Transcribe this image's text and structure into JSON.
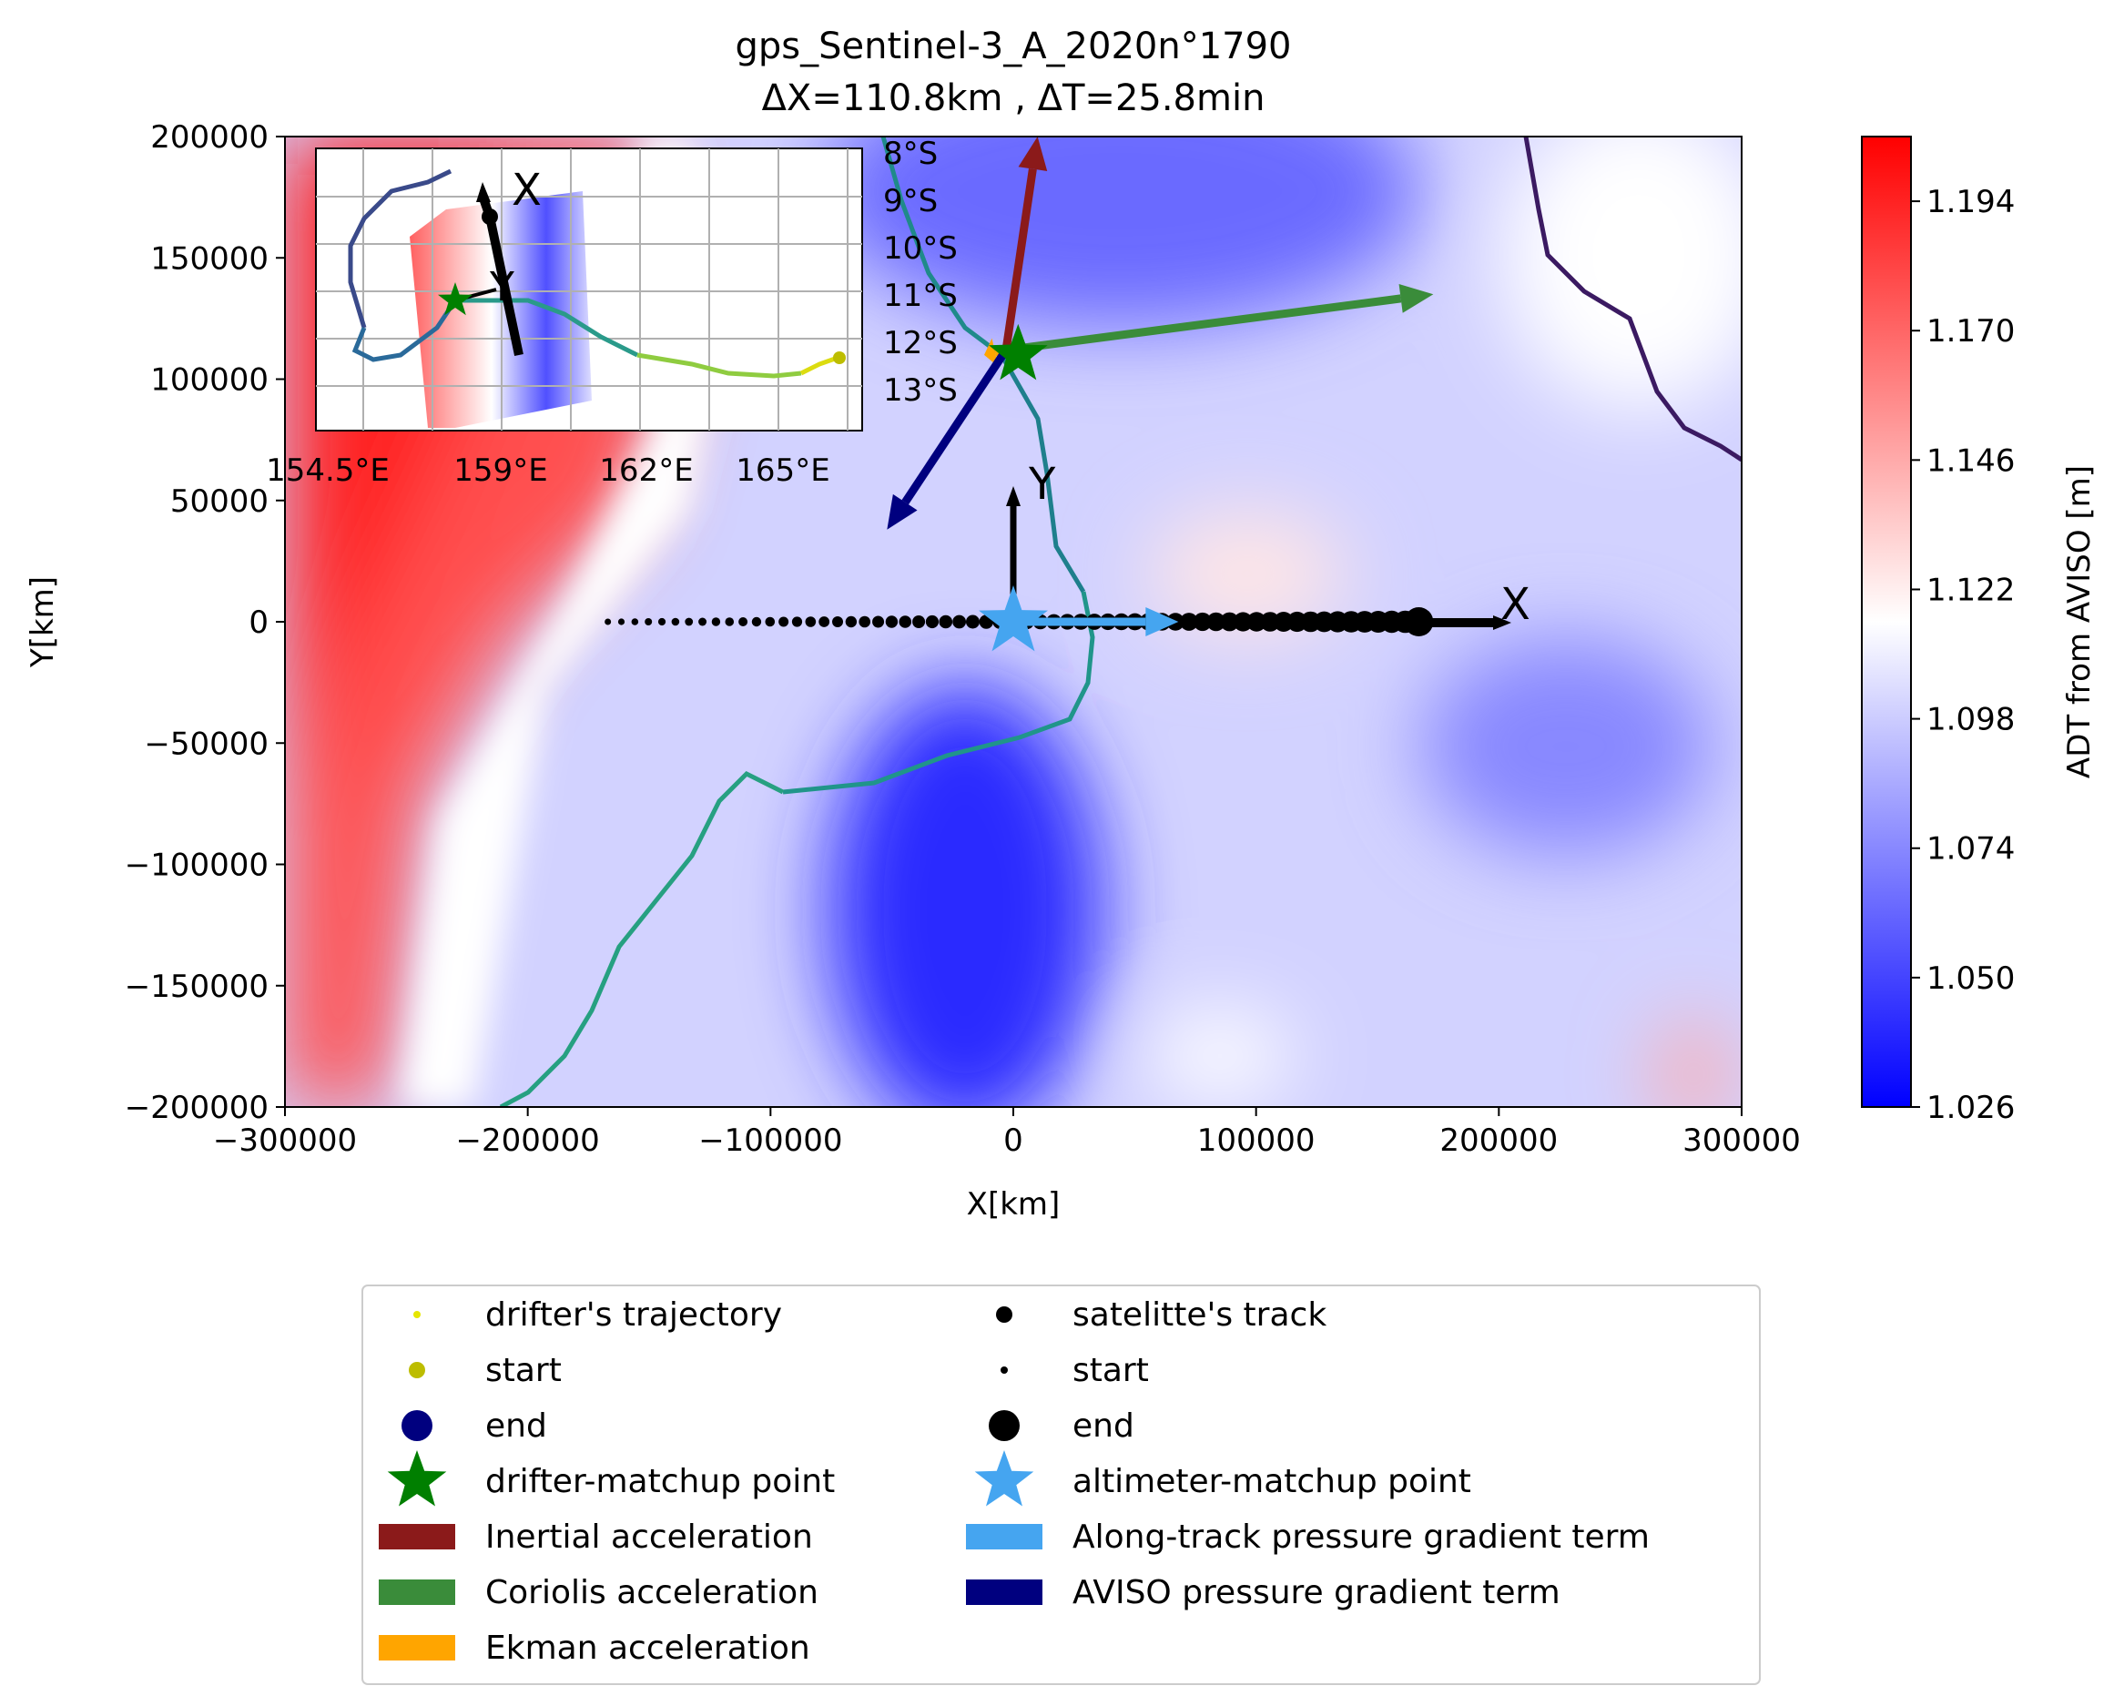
{
  "chart_data": {
    "type": "contour",
    "title_line1": "gps_Sentinel-3_A_2020n°1790",
    "title_line2": "ΔX=110.8km , ΔT=25.8min",
    "xlabel": "X[km]",
    "ylabel": "Y[km]",
    "xlim": [
      -300000,
      300000
    ],
    "ylim": [
      -200000,
      200000
    ],
    "x_ticks": [
      -300000,
      -200000,
      -100000,
      0,
      100000,
      200000,
      300000
    ],
    "x_tick_labels": [
      "−300000",
      "−200000",
      "−100000",
      "0",
      "100000",
      "200000",
      "300000"
    ],
    "y_ticks": [
      200000,
      150000,
      100000,
      50000,
      0,
      -50000,
      -100000,
      -150000,
      -200000
    ],
    "y_tick_labels": [
      "200000",
      "150000",
      "100000",
      "50000",
      "0",
      "−50000",
      "−100000",
      "−150000",
      "−200000"
    ],
    "colorbar": {
      "label": "ADT from AVISO [m]",
      "min": 1.026,
      "max": 1.206,
      "ticks": [
        1.026,
        1.05,
        1.074,
        1.098,
        1.122,
        1.146,
        1.17,
        1.194
      ],
      "tick_labels": [
        "1.026",
        "1.050",
        "1.074",
        "1.098",
        "1.122",
        "1.146",
        "1.170",
        "1.194"
      ],
      "colormap": [
        "#0000ff",
        "#ffffff",
        "#ff0000"
      ]
    },
    "satellite_track": {
      "x_start": -167000,
      "x_end": 167000,
      "y": 0
    },
    "drifter_matchup": {
      "x": 2000,
      "y": 110000
    },
    "altimeter_matchup": {
      "x": 0,
      "y": 0
    },
    "axis_arrows": {
      "x_label": "X",
      "y_label": "Y"
    },
    "vectors": [
      {
        "name": "Inertial acceleration",
        "color": "#8b1a1a",
        "x0": -3000,
        "y0": 112000,
        "x1": 10000,
        "y1": 200000
      },
      {
        "name": "Coriolis acceleration",
        "color": "#3a8c3a",
        "x0": -3000,
        "y0": 112000,
        "x1": 173000,
        "y1": 135000
      },
      {
        "name": "Ekman acceleration",
        "color": "#ffa500",
        "x0": -3000,
        "y0": 112000,
        "x1": -12000,
        "y1": 110000
      },
      {
        "name": "AVISO pressure gradient term",
        "color": "#00007f",
        "x0": -3000,
        "y0": 112000,
        "x1": -52000,
        "y1": 38000
      },
      {
        "name": "Along-track pressure gradient term",
        "color": "#45a5f0",
        "x0": 0,
        "y0": 0,
        "x1": 68000,
        "y1": 0
      }
    ],
    "inset": {
      "lat_labels": [
        "8°S",
        "9°S",
        "10°S",
        "11°S",
        "12°S",
        "13°S"
      ],
      "lon_labels": [
        "154.5°E",
        "159°E",
        "162°E",
        "165°E"
      ],
      "axis_labels": {
        "x": "X",
        "y": "Y"
      }
    },
    "legend": {
      "placement": "below",
      "entries": [
        {
          "label": "drifter's trajectory",
          "marker": "small-dot",
          "color": "#e6e600"
        },
        {
          "label": "start",
          "marker": "dot",
          "color": "#bdbd00"
        },
        {
          "label": "end",
          "marker": "big-dot",
          "color": "#00007f"
        },
        {
          "label": "drifter-matchup point",
          "marker": "star",
          "color": "#007f00"
        },
        {
          "label": "Inertial acceleration",
          "marker": "patch",
          "color": "#8b1a1a"
        },
        {
          "label": "Coriolis acceleration",
          "marker": "patch",
          "color": "#3a8c3a"
        },
        {
          "label": "Ekman acceleration",
          "marker": "patch",
          "color": "#ffa500"
        },
        {
          "label": "satelitte's track",
          "marker": "dot",
          "color": "#000000"
        },
        {
          "label": "start",
          "marker": "small-dot",
          "color": "#000000"
        },
        {
          "label": "end",
          "marker": "big-dot",
          "color": "#000000"
        },
        {
          "label": "altimeter-matchup point",
          "marker": "star",
          "color": "#45a5f0"
        },
        {
          "label": "Along-track pressure gradient term",
          "marker": "patch",
          "color": "#45a5f0"
        },
        {
          "label": "AVISO pressure gradient term",
          "marker": "patch",
          "color": "#00007f"
        }
      ]
    }
  }
}
